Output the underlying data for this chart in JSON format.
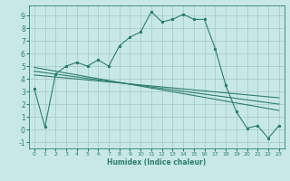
{
  "xlabel": "Humidex (Indice chaleur)",
  "bg_color": "#c8e8e8",
  "line_color": "#2e7d6e",
  "grid_color": "#a0c8c0",
  "xlim": [
    -0.5,
    23.5
  ],
  "ylim": [
    -1.5,
    9.8
  ],
  "xticks": [
    0,
    1,
    2,
    3,
    4,
    5,
    6,
    7,
    8,
    9,
    10,
    11,
    12,
    13,
    14,
    15,
    16,
    17,
    18,
    19,
    20,
    21,
    22,
    23
  ],
  "yticks": [
    -1,
    0,
    1,
    2,
    3,
    4,
    5,
    6,
    7,
    8,
    9
  ],
  "line1_x": [
    0,
    1,
    2,
    3,
    4,
    5,
    6,
    7,
    8,
    9,
    10,
    11,
    12,
    13,
    14,
    15,
    16,
    17,
    18,
    19,
    20,
    21,
    22,
    23
  ],
  "line1_y": [
    3.2,
    0.2,
    4.4,
    5.0,
    5.3,
    5.0,
    5.5,
    5.0,
    6.6,
    7.3,
    7.7,
    9.3,
    8.5,
    8.7,
    9.1,
    8.7,
    8.7,
    6.4,
    3.5,
    1.4,
    0.1,
    0.3,
    -0.7,
    0.3
  ],
  "line2_x": [
    0,
    23
  ],
  "line2_y": [
    4.9,
    1.5
  ],
  "line3_x": [
    0,
    23
  ],
  "line3_y": [
    4.6,
    2.0
  ],
  "line4_x": [
    0,
    23
  ],
  "line4_y": [
    4.3,
    2.5
  ]
}
